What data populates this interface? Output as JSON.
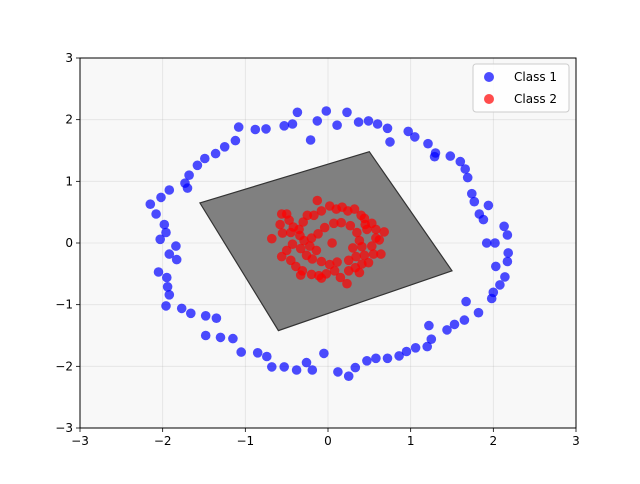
{
  "chart_data": {
    "type": "scatter",
    "title": "",
    "xlabel": "",
    "ylabel": "",
    "xlim": [
      -3,
      3
    ],
    "ylim": [
      -3,
      3
    ],
    "xticks": [
      "−3",
      "−2",
      "−1",
      "0",
      "1",
      "2",
      "3"
    ],
    "yticks": [
      "−3",
      "−2",
      "−1",
      "0",
      "1",
      "2",
      "3"
    ],
    "grid": true,
    "legend_position": "top-right",
    "background_color": "#f8f8f8",
    "decision_region": {
      "color": "#808080",
      "outline_color": "#333333",
      "polygon": [
        [
          -1.55,
          0.65
        ],
        [
          0.5,
          1.48
        ],
        [
          1.5,
          -0.45
        ],
        [
          -0.6,
          -1.42
        ]
      ]
    },
    "series": [
      {
        "name": "Class 1",
        "color": "#0000ff",
        "points": [
          [
            -2.15,
            0.63
          ],
          [
            -2.08,
            0.47
          ],
          [
            -2.03,
            0.06
          ],
          [
            -1.96,
            0.17
          ],
          [
            -1.98,
            0.3
          ],
          [
            -1.92,
            0.86
          ],
          [
            -2.02,
            0.74
          ],
          [
            -1.84,
            -0.05
          ],
          [
            -1.83,
            -0.27
          ],
          [
            -1.92,
            -0.18
          ],
          [
            -2.05,
            -0.47
          ],
          [
            -1.95,
            -0.56
          ],
          [
            -1.94,
            -0.71
          ],
          [
            -1.92,
            -0.84
          ],
          [
            -1.96,
            -1.02
          ],
          [
            -1.77,
            -1.06
          ],
          [
            -1.66,
            -1.14
          ],
          [
            -1.48,
            -1.18
          ],
          [
            -1.48,
            -1.5
          ],
          [
            -1.35,
            -1.22
          ],
          [
            -1.3,
            -1.53
          ],
          [
            -1.15,
            -1.55
          ],
          [
            -1.05,
            -1.77
          ],
          [
            -0.85,
            -1.78
          ],
          [
            -0.74,
            -1.84
          ],
          [
            -0.68,
            -2.01
          ],
          [
            -0.53,
            -2.01
          ],
          [
            -0.38,
            -2.06
          ],
          [
            -0.26,
            -1.94
          ],
          [
            -0.05,
            -1.79
          ],
          [
            -0.19,
            -2.06
          ],
          [
            0.12,
            -2.09
          ],
          [
            0.25,
            -2.16
          ],
          [
            0.33,
            -2.02
          ],
          [
            0.47,
            -1.91
          ],
          [
            0.58,
            -1.87
          ],
          [
            0.72,
            -1.87
          ],
          [
            0.86,
            -1.83
          ],
          [
            0.95,
            -1.76
          ],
          [
            1.06,
            -1.7
          ],
          [
            1.2,
            -1.68
          ],
          [
            1.25,
            -1.56
          ],
          [
            1.22,
            -1.34
          ],
          [
            1.44,
            -1.41
          ],
          [
            1.53,
            -1.32
          ],
          [
            1.65,
            -1.25
          ],
          [
            1.67,
            -0.95
          ],
          [
            1.82,
            -1.13
          ],
          [
            1.98,
            -0.9
          ],
          [
            2.0,
            -0.8
          ],
          [
            2.08,
            -0.68
          ],
          [
            2.14,
            -0.55
          ],
          [
            2.17,
            -0.3
          ],
          [
            2.03,
            -0.38
          ],
          [
            2.18,
            -0.16
          ],
          [
            1.92,
            0.0
          ],
          [
            2.02,
            0.0
          ],
          [
            2.17,
            0.13
          ],
          [
            2.13,
            0.27
          ],
          [
            1.88,
            0.38
          ],
          [
            1.94,
            0.61
          ],
          [
            1.83,
            0.47
          ],
          [
            1.77,
            0.67
          ],
          [
            1.74,
            0.8
          ],
          [
            1.69,
            1.06
          ],
          [
            1.66,
            1.2
          ],
          [
            1.6,
            1.32
          ],
          [
            1.48,
            1.41
          ],
          [
            1.3,
            1.46
          ],
          [
            1.21,
            1.61
          ],
          [
            1.29,
            1.4
          ],
          [
            1.05,
            1.72
          ],
          [
            0.97,
            1.81
          ],
          [
            0.75,
            1.64
          ],
          [
            0.72,
            1.86
          ],
          [
            0.6,
            1.93
          ],
          [
            0.49,
            1.98
          ],
          [
            0.37,
            1.96
          ],
          [
            0.23,
            2.12
          ],
          [
            0.11,
            1.91
          ],
          [
            -0.02,
            2.14
          ],
          [
            -0.13,
            1.98
          ],
          [
            -0.21,
            1.67
          ],
          [
            -0.43,
            1.93
          ],
          [
            -0.37,
            2.12
          ],
          [
            -0.53,
            1.9
          ],
          [
            -0.75,
            1.85
          ],
          [
            -0.88,
            1.84
          ],
          [
            -1.08,
            1.88
          ],
          [
            -1.12,
            1.66
          ],
          [
            -1.25,
            1.56
          ],
          [
            -1.36,
            1.45
          ],
          [
            -1.49,
            1.37
          ],
          [
            -1.58,
            1.26
          ],
          [
            -1.68,
            1.1
          ],
          [
            -1.73,
            0.97
          ],
          [
            -1.7,
            0.89
          ]
        ]
      },
      {
        "name": "Class 2",
        "color": "#ff0000",
        "points": [
          [
            -0.68,
            0.07
          ],
          [
            -0.56,
            0.47
          ],
          [
            -0.5,
            0.47
          ],
          [
            -0.58,
            0.3
          ],
          [
            -0.47,
            0.37
          ],
          [
            -0.55,
            0.16
          ],
          [
            -0.45,
            0.17
          ],
          [
            -0.43,
            -0.02
          ],
          [
            -0.5,
            -0.12
          ],
          [
            -0.56,
            -0.22
          ],
          [
            -0.45,
            -0.28
          ],
          [
            -0.39,
            -0.38
          ],
          [
            -0.31,
            -0.45
          ],
          [
            -0.2,
            -0.51
          ],
          [
            -0.11,
            -0.53
          ],
          [
            -0.02,
            -0.5
          ],
          [
            0.08,
            -0.45
          ],
          [
            0.15,
            -0.56
          ],
          [
            0.23,
            -0.66
          ],
          [
            0.25,
            -0.45
          ],
          [
            0.33,
            -0.4
          ],
          [
            0.41,
            -0.34
          ],
          [
            0.49,
            -0.32
          ],
          [
            0.55,
            -0.18
          ],
          [
            0.64,
            -0.18
          ],
          [
            0.53,
            -0.05
          ],
          [
            0.62,
            0.05
          ],
          [
            0.68,
            0.18
          ],
          [
            0.58,
            0.22
          ],
          [
            0.53,
            0.32
          ],
          [
            0.44,
            0.4
          ],
          [
            0.4,
            0.45
          ],
          [
            0.32,
            0.55
          ],
          [
            0.24,
            0.52
          ],
          [
            0.1,
            0.55
          ],
          [
            0.02,
            0.6
          ],
          [
            -0.13,
            0.69
          ],
          [
            -0.08,
            0.52
          ],
          [
            -0.17,
            0.45
          ],
          [
            -0.25,
            0.45
          ],
          [
            -0.3,
            0.34
          ],
          [
            -0.35,
            0.22
          ],
          [
            -0.34,
            0.12
          ],
          [
            -0.29,
            0.04
          ],
          [
            -0.33,
            -0.09
          ],
          [
            -0.26,
            -0.2
          ],
          [
            -0.19,
            -0.26
          ],
          [
            -0.08,
            -0.3
          ],
          [
            0.02,
            -0.35
          ],
          [
            0.11,
            -0.31
          ],
          [
            0.25,
            -0.28
          ],
          [
            0.34,
            -0.22
          ],
          [
            0.41,
            -0.06
          ],
          [
            0.38,
            0.04
          ],
          [
            0.35,
            0.17
          ],
          [
            0.27,
            0.28
          ],
          [
            0.16,
            0.33
          ],
          [
            0.07,
            0.32
          ],
          [
            -0.04,
            0.25
          ],
          [
            -0.12,
            0.15
          ],
          [
            -0.2,
            0.08
          ],
          [
            -0.22,
            -0.05
          ],
          [
            -0.14,
            -0.12
          ],
          [
            0.05,
            0.0
          ],
          [
            0.3,
            -0.08
          ],
          [
            0.44,
            -0.2
          ],
          [
            0.47,
            0.22
          ],
          [
            0.45,
            0.3
          ],
          [
            0.17,
            0.58
          ],
          [
            -0.33,
            -0.52
          ],
          [
            -0.08,
            -0.57
          ],
          [
            0.38,
            -0.48
          ],
          [
            -0.42,
            0.26
          ],
          [
            0.58,
            0.08
          ]
        ]
      }
    ]
  }
}
